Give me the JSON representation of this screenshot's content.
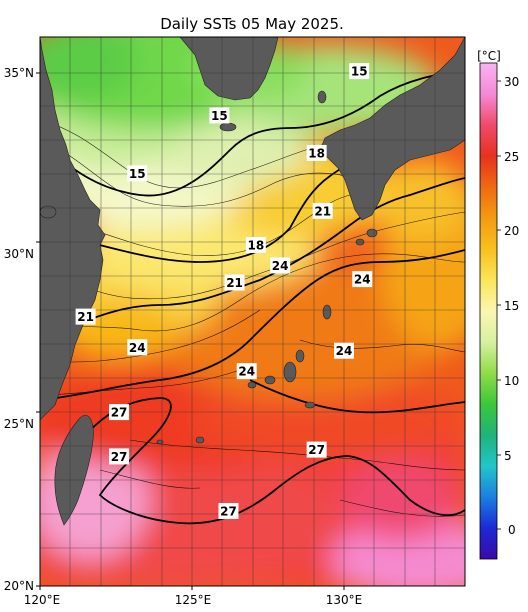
{
  "title": "Daily SSTs 05 May 2025.",
  "colorbar": {
    "unit": "[°C]",
    "ticks": [
      "30",
      "25",
      "20",
      "15",
      "10",
      "5",
      "0"
    ],
    "stops": [
      "#3a0aa8",
      "#1b2ad6",
      "#1b7fe0",
      "#22c6c9",
      "#1fb37a",
      "#3bc83a",
      "#8fdc4a",
      "#d8f0a0",
      "#fbf6b2",
      "#fbe55a",
      "#f8c01e",
      "#f59a12",
      "#ef6a12",
      "#e8321c",
      "#f04a6a",
      "#f48ad6",
      "#f8b4f2"
    ]
  },
  "axes": {
    "lat_labels": [
      "35°N",
      "30°N",
      "25°N",
      "20°N"
    ],
    "lon_labels": [
      "120°E",
      "125°E",
      "130°E"
    ]
  },
  "contour_labels": [
    {
      "text": "15",
      "lon": 130.5,
      "lat": 35.1
    },
    {
      "text": "15",
      "lon": 125.9,
      "lat": 33.8
    },
    {
      "text": "15",
      "lon": 123.2,
      "lat": 32.1
    },
    {
      "text": "18",
      "lon": 129.1,
      "lat": 32.7
    },
    {
      "text": "21",
      "lon": 129.3,
      "lat": 31.0
    },
    {
      "text": "18",
      "lon": 127.1,
      "lat": 30.0
    },
    {
      "text": "24",
      "lon": 127.9,
      "lat": 29.4
    },
    {
      "text": "24",
      "lon": 130.6,
      "lat": 29.0
    },
    {
      "text": "21",
      "lon": 126.4,
      "lat": 28.9
    },
    {
      "text": "21",
      "lon": 121.5,
      "lat": 27.9
    },
    {
      "text": "24",
      "lon": 123.2,
      "lat": 27.0
    },
    {
      "text": "24",
      "lon": 130.0,
      "lat": 26.9
    },
    {
      "text": "24",
      "lon": 126.8,
      "lat": 26.3
    },
    {
      "text": "27",
      "lon": 122.6,
      "lat": 25.1
    },
    {
      "text": "27",
      "lon": 122.6,
      "lat": 23.8
    },
    {
      "text": "27",
      "lon": 129.1,
      "lat": 24.0
    },
    {
      "text": "27",
      "lon": 126.2,
      "lat": 22.2
    }
  ],
  "colors": {
    "land": "#5a5a5a",
    "grid": "#333333",
    "contour": "#000000"
  }
}
